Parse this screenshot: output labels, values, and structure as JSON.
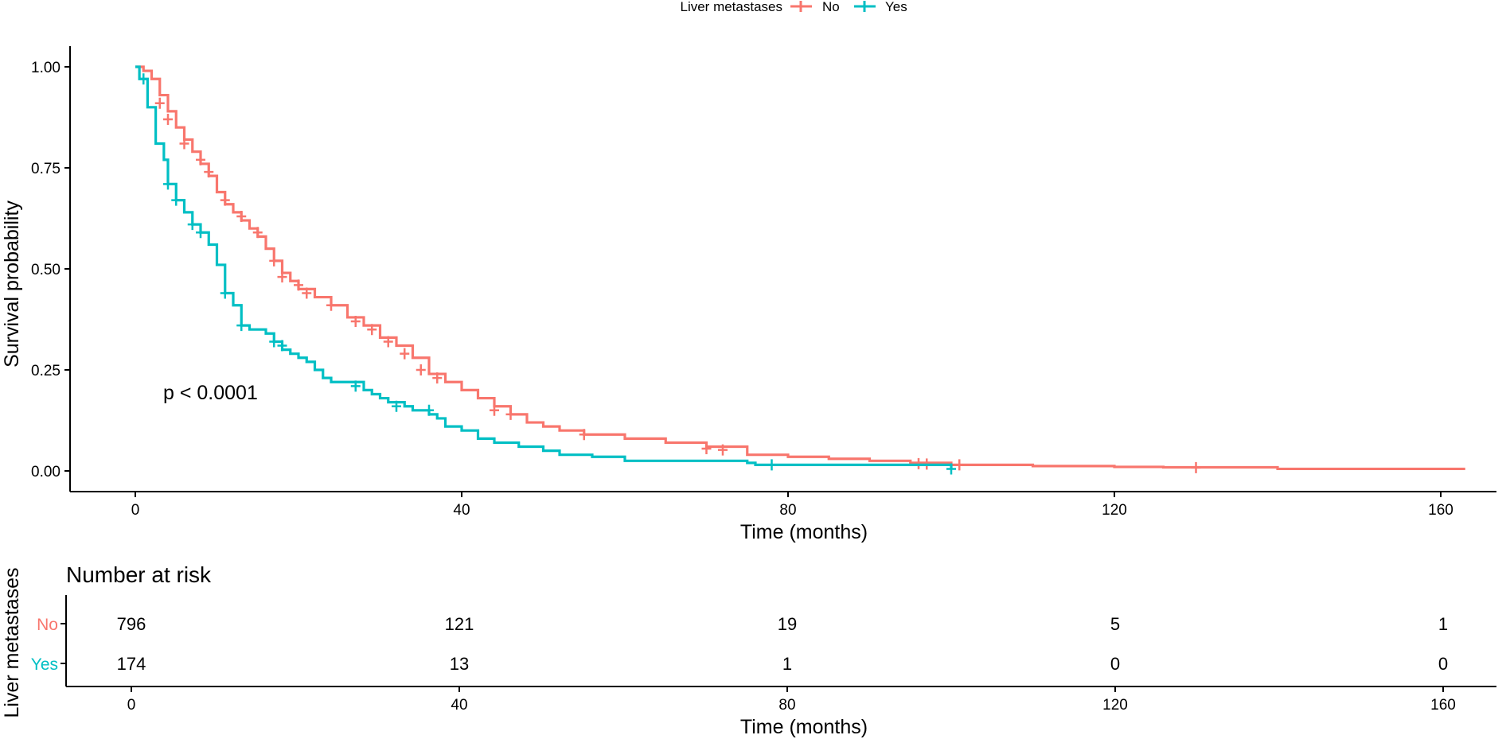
{
  "legend": {
    "title": "Liver metastases",
    "items": [
      {
        "label": "No",
        "color": "#F8766D"
      },
      {
        "label": "Yes",
        "color": "#00BFC4"
      }
    ]
  },
  "chart_data": [
    {
      "type": "line",
      "subtype": "kaplan-meier-step",
      "xlabel": "Time (months)",
      "ylabel": "Survival probability",
      "xlim": [
        0,
        163
      ],
      "ylim": [
        0,
        1
      ],
      "x_ticks": [
        0,
        40,
        80,
        120,
        160
      ],
      "y_ticks": [
        0,
        0.25,
        0.5,
        0.75,
        1.0
      ],
      "y_tick_labels": [
        "0.00",
        "0.25",
        "0.50",
        "0.75",
        "1.00"
      ],
      "grid": false,
      "legend_position": "top",
      "annotation": "p < 0.0001",
      "series": [
        {
          "name": "No",
          "color": "#F8766D",
          "points": [
            [
              0,
              1.0
            ],
            [
              1,
              0.99
            ],
            [
              2,
              0.97
            ],
            [
              3,
              0.93
            ],
            [
              4,
              0.89
            ],
            [
              5,
              0.85
            ],
            [
              6,
              0.82
            ],
            [
              7,
              0.79
            ],
            [
              8,
              0.76
            ],
            [
              9,
              0.73
            ],
            [
              10,
              0.69
            ],
            [
              11,
              0.66
            ],
            [
              12,
              0.64
            ],
            [
              13,
              0.62
            ],
            [
              14,
              0.6
            ],
            [
              15,
              0.58
            ],
            [
              16,
              0.55
            ],
            [
              17,
              0.52
            ],
            [
              18,
              0.49
            ],
            [
              19,
              0.47
            ],
            [
              20,
              0.45
            ],
            [
              22,
              0.43
            ],
            [
              24,
              0.41
            ],
            [
              26,
              0.38
            ],
            [
              28,
              0.36
            ],
            [
              30,
              0.33
            ],
            [
              32,
              0.31
            ],
            [
              34,
              0.28
            ],
            [
              36,
              0.24
            ],
            [
              38,
              0.22
            ],
            [
              40,
              0.2
            ],
            [
              42,
              0.18
            ],
            [
              44,
              0.16
            ],
            [
              46,
              0.14
            ],
            [
              48,
              0.12
            ],
            [
              50,
              0.11
            ],
            [
              52,
              0.1
            ],
            [
              55,
              0.09
            ],
            [
              60,
              0.08
            ],
            [
              65,
              0.07
            ],
            [
              70,
              0.06
            ],
            [
              75,
              0.04
            ],
            [
              80,
              0.035
            ],
            [
              85,
              0.03
            ],
            [
              90,
              0.025
            ],
            [
              95,
              0.02
            ],
            [
              100,
              0.015
            ],
            [
              110,
              0.012
            ],
            [
              120,
              0.01
            ],
            [
              126,
              0.009
            ],
            [
              140,
              0.005
            ],
            [
              163,
              0.005
            ]
          ],
          "censored": [
            [
              3,
              0.91
            ],
            [
              4,
              0.87
            ],
            [
              6,
              0.81
            ],
            [
              8,
              0.77
            ],
            [
              9,
              0.74
            ],
            [
              11,
              0.67
            ],
            [
              13,
              0.63
            ],
            [
              15,
              0.59
            ],
            [
              17,
              0.52
            ],
            [
              18,
              0.48
            ],
            [
              20,
              0.46
            ],
            [
              21,
              0.44
            ],
            [
              24,
              0.41
            ],
            [
              27,
              0.37
            ],
            [
              29,
              0.35
            ],
            [
              31,
              0.32
            ],
            [
              33,
              0.29
            ],
            [
              35,
              0.25
            ],
            [
              37,
              0.23
            ],
            [
              44,
              0.15
            ],
            [
              46,
              0.14
            ],
            [
              55,
              0.09
            ],
            [
              70,
              0.055
            ],
            [
              72,
              0.052
            ],
            [
              96,
              0.018
            ],
            [
              97,
              0.017
            ],
            [
              101,
              0.015
            ],
            [
              130,
              0.008
            ]
          ]
        },
        {
          "name": "Yes",
          "color": "#00BFC4",
          "points": [
            [
              0,
              1.0
            ],
            [
              0.5,
              0.97
            ],
            [
              1,
              0.97
            ],
            [
              1.5,
              0.9
            ],
            [
              2,
              0.9
            ],
            [
              2.5,
              0.81
            ],
            [
              3,
              0.81
            ],
            [
              3.5,
              0.77
            ],
            [
              4,
              0.71
            ],
            [
              5,
              0.67
            ],
            [
              6,
              0.64
            ],
            [
              7,
              0.61
            ],
            [
              8,
              0.59
            ],
            [
              9,
              0.56
            ],
            [
              10,
              0.51
            ],
            [
              11,
              0.44
            ],
            [
              12,
              0.41
            ],
            [
              13,
              0.36
            ],
            [
              14,
              0.35
            ],
            [
              16,
              0.34
            ],
            [
              17,
              0.32
            ],
            [
              18,
              0.3
            ],
            [
              19,
              0.29
            ],
            [
              20,
              0.28
            ],
            [
              21,
              0.27
            ],
            [
              22,
              0.25
            ],
            [
              23,
              0.23
            ],
            [
              24,
              0.22
            ],
            [
              26,
              0.22
            ],
            [
              28,
              0.2
            ],
            [
              29,
              0.19
            ],
            [
              30,
              0.18
            ],
            [
              31,
              0.17
            ],
            [
              33,
              0.16
            ],
            [
              34,
              0.15
            ],
            [
              36,
              0.14
            ],
            [
              37,
              0.13
            ],
            [
              38,
              0.11
            ],
            [
              40,
              0.1
            ],
            [
              42,
              0.08
            ],
            [
              44,
              0.07
            ],
            [
              47,
              0.06
            ],
            [
              50,
              0.05
            ],
            [
              52,
              0.04
            ],
            [
              56,
              0.035
            ],
            [
              60,
              0.025
            ],
            [
              75,
              0.02
            ],
            [
              76,
              0.015
            ],
            [
              100,
              0.005
            ]
          ],
          "censored": [
            [
              1,
              0.97
            ],
            [
              4,
              0.71
            ],
            [
              5,
              0.67
            ],
            [
              7,
              0.61
            ],
            [
              8,
              0.59
            ],
            [
              11,
              0.44
            ],
            [
              13,
              0.36
            ],
            [
              17,
              0.32
            ],
            [
              18,
              0.31
            ],
            [
              27,
              0.21
            ],
            [
              32,
              0.16
            ],
            [
              36,
              0.15
            ],
            [
              78,
              0.015
            ],
            [
              100,
              0.005
            ]
          ]
        }
      ]
    },
    {
      "type": "table",
      "title": "Number at risk",
      "ylabel": "Liver metastases",
      "xlabel": "Time (months)",
      "x_ticks": [
        0,
        40,
        80,
        120,
        160
      ],
      "rows": [
        {
          "label": "No",
          "color": "#F8766D",
          "values": [
            796,
            121,
            19,
            5,
            1
          ]
        },
        {
          "label": "Yes",
          "color": "#00BFC4",
          "values": [
            174,
            13,
            1,
            0,
            0
          ]
        }
      ]
    }
  ]
}
